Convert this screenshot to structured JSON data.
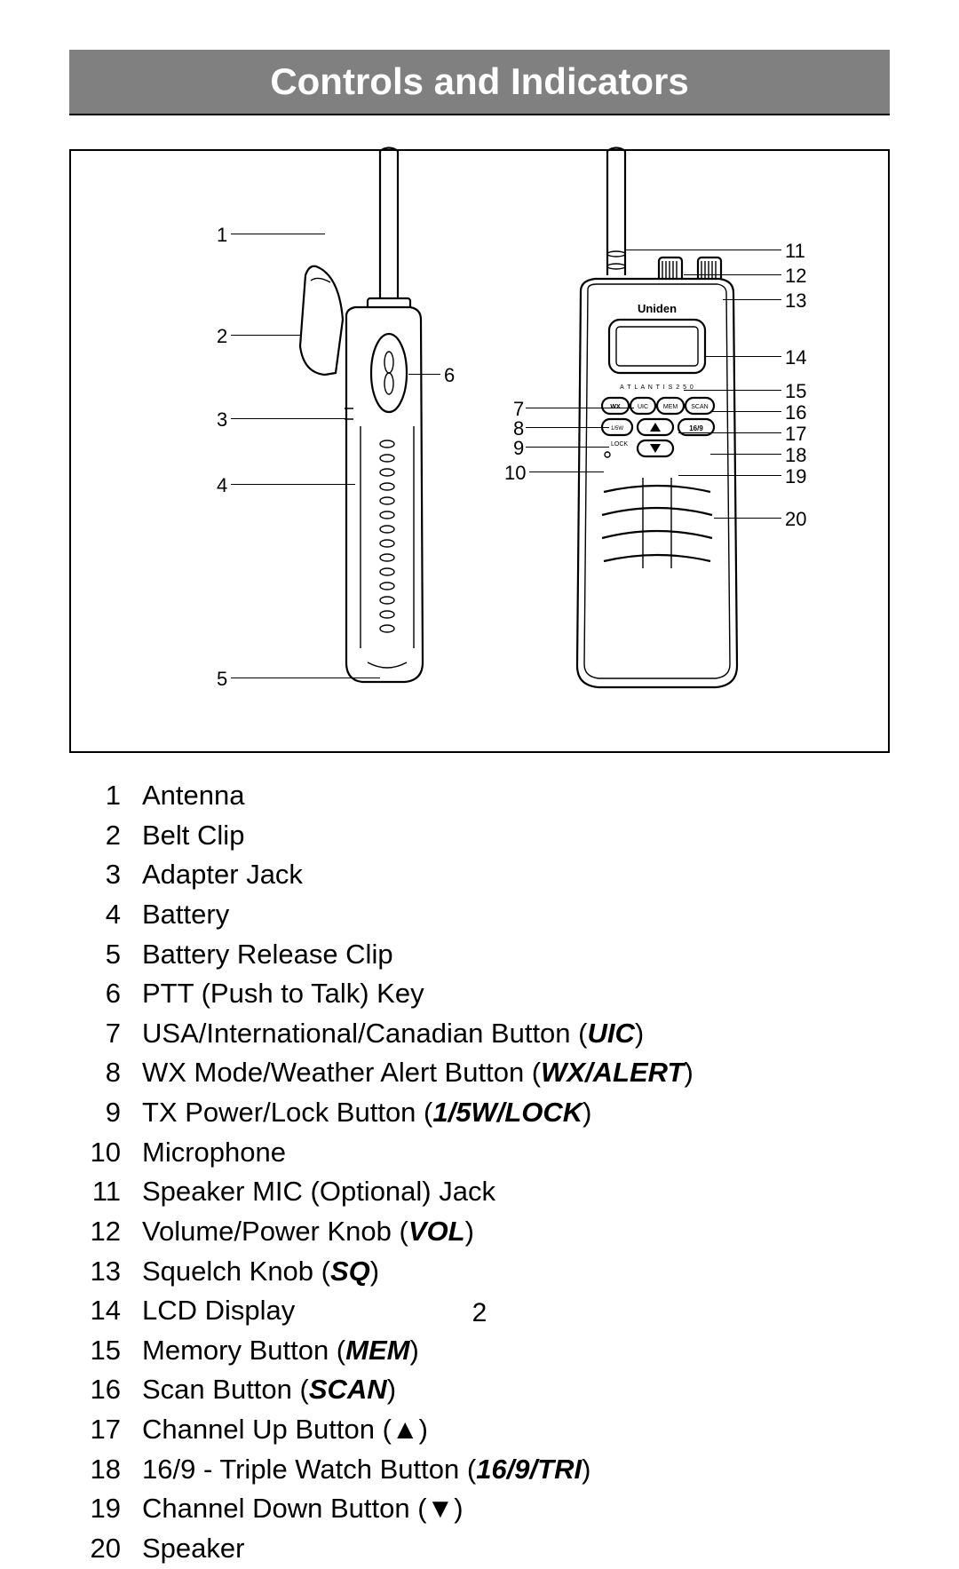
{
  "title": "Controls and Indicators",
  "page_number": "2",
  "brand_label": "Uniden",
  "model_label": "A T L A N T I S  2 5 0",
  "button_labels": {
    "wx": "WX",
    "uic": "UIC",
    "mem": "MEM",
    "scan": "SCAN",
    "lock": "LOCK",
    "pw": "1/5W"
  },
  "left_callouts": {
    "1": "1",
    "2": "2",
    "3": "3",
    "4": "4",
    "5": "5",
    "6": "6"
  },
  "mid_callouts": {
    "7": "7",
    "8": "8",
    "9": "9",
    "10": "10"
  },
  "right_callouts": {
    "11": "11",
    "12": "12",
    "13": "13",
    "14": "14",
    "15": "15",
    "16": "16",
    "17": "17",
    "18": "18",
    "19": "19",
    "20": "20"
  },
  "legend": [
    {
      "n": "1",
      "t": "Antenna"
    },
    {
      "n": "2",
      "t": "Belt Clip"
    },
    {
      "n": "3",
      "t": "Adapter Jack"
    },
    {
      "n": "4",
      "t": "Battery"
    },
    {
      "n": "5",
      "t": "Battery Release Clip"
    },
    {
      "n": "6",
      "t": "PTT (Push to Talk) Key"
    },
    {
      "n": "7",
      "t": "USA/International/Canadian Button (",
      "b": "UIC",
      "a": ")"
    },
    {
      "n": "8",
      "t": "WX Mode/Weather Alert Button (",
      "b": "WX/ALERT",
      "a": ")"
    },
    {
      "n": "9",
      "t": "TX Power/Lock Button (",
      "b": "1/5W/LOCK",
      "a": ")"
    },
    {
      "n": "10",
      "t": "Microphone"
    },
    {
      "n": "11",
      "t": "Speaker MIC (Optional) Jack"
    },
    {
      "n": "12",
      "t": "Volume/Power Knob (",
      "b": "VOL",
      "a": ")"
    },
    {
      "n": "13",
      "t": "Squelch Knob (",
      "b": "SQ",
      "a": ")"
    },
    {
      "n": "14",
      "t": "LCD Display"
    },
    {
      "n": "15",
      "t": "Memory Button (",
      "b": "MEM",
      "a": ")"
    },
    {
      "n": "16",
      "t": "Scan Button (",
      "b": "SCAN",
      "a": ")"
    },
    {
      "n": "17",
      "t": "Channel Up Button (▲)"
    },
    {
      "n": "18",
      "t": "16/9 - Triple Watch Button (",
      "b": "16/9/TRI",
      "a": ")"
    },
    {
      "n": "19",
      "t": "Channel Down Button (▼)"
    },
    {
      "n": "20",
      "t": "Speaker"
    }
  ]
}
